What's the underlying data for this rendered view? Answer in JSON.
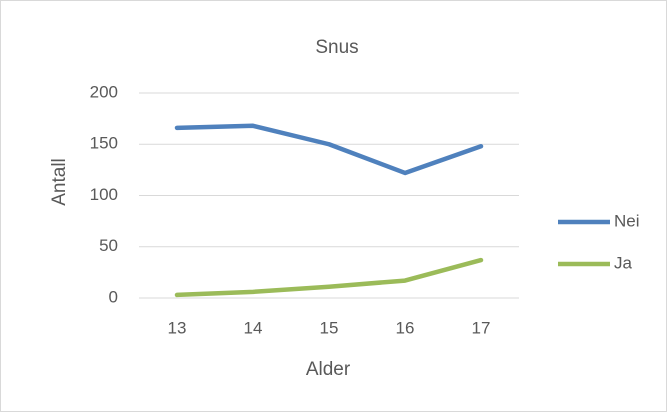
{
  "chart_data": {
    "type": "line",
    "title": "Snus",
    "x_label": "Alder",
    "y_label": "Antall",
    "categories": [
      "13",
      "14",
      "15",
      "16",
      "17"
    ],
    "series": [
      {
        "name": "Nei",
        "color": "#4f81bd",
        "values": [
          166,
          168,
          150,
          122,
          148
        ]
      },
      {
        "name": "Ja",
        "color": "#9bbb59",
        "values": [
          3,
          6,
          11,
          17,
          37
        ]
      }
    ],
    "ylim": [
      0,
      200
    ],
    "yticks": [
      0,
      50,
      100,
      150,
      200
    ],
    "grid": true,
    "legend": "right"
  }
}
